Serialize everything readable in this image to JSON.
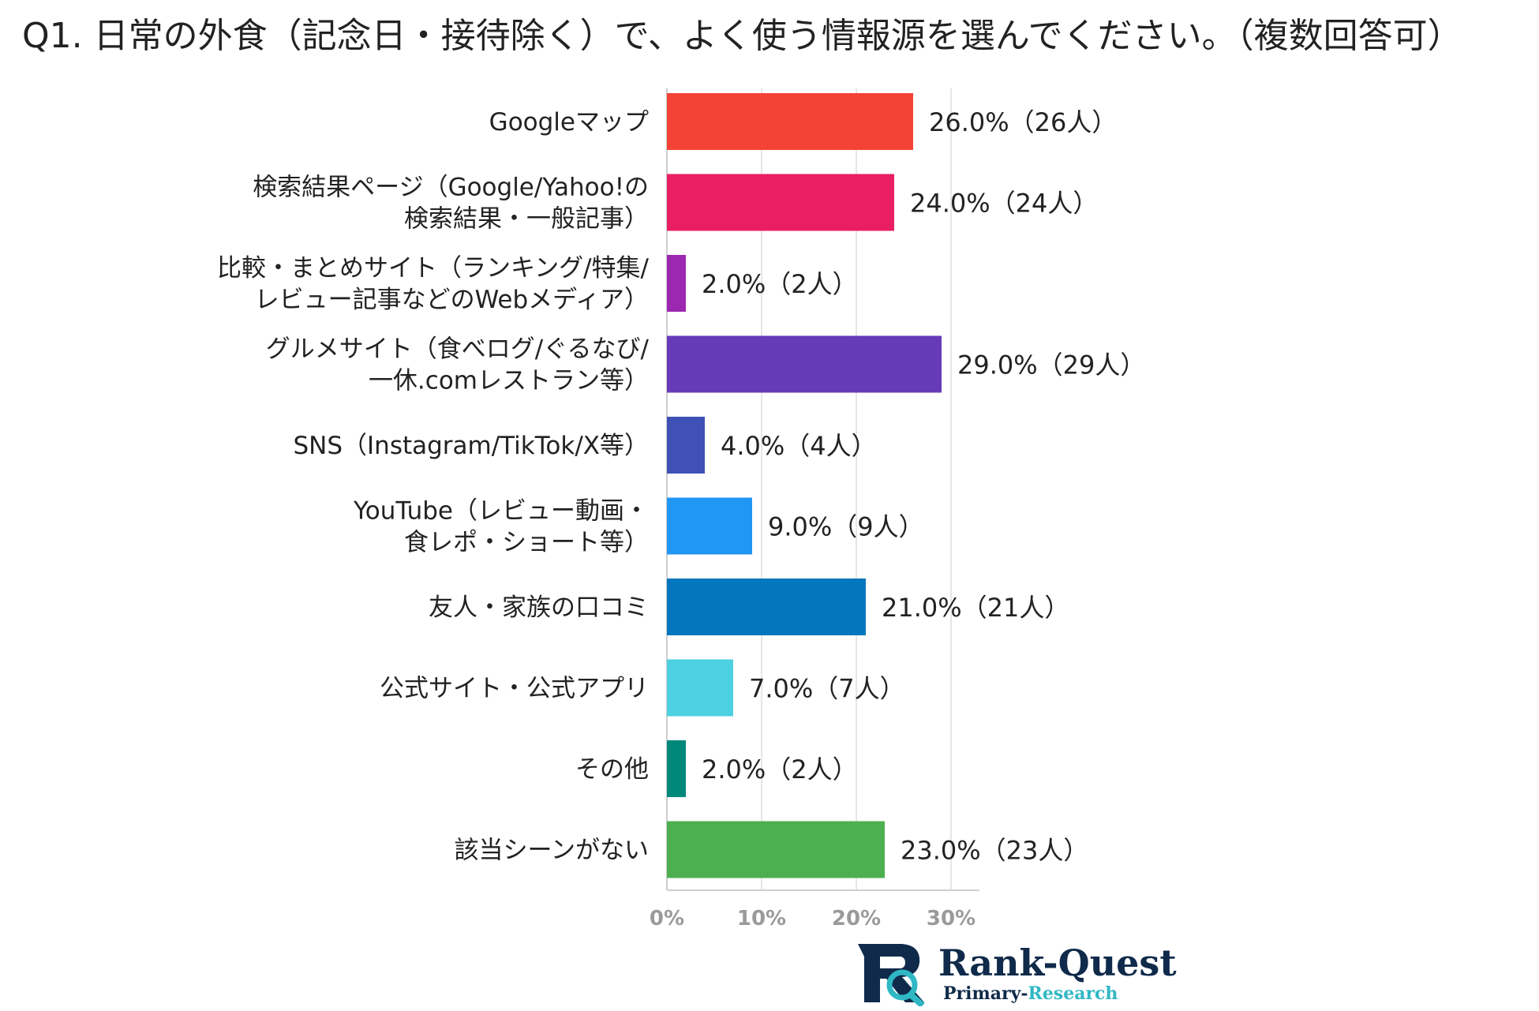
{
  "title": "Q1. 日常の外食（記念日・接待除く）で、よく使う情報源を選んでください。（複数回答可）",
  "chart_data": {
    "type": "bar",
    "orientation": "horizontal",
    "categories": [
      [
        "Googleマップ"
      ],
      [
        "検索結果ページ（Google/Yahoo!の",
        "検索結果・一般記事）"
      ],
      [
        "比較・まとめサイト（ランキング/特集/",
        "レビュー記事などのWebメディア）"
      ],
      [
        "グルメサイト（食べログ/ぐるなび/",
        "一休.comレストラン等）"
      ],
      [
        "SNS（Instagram/TikTok/X等）"
      ],
      [
        "YouTube（レビュー動画・",
        "食レポ・ショート等）"
      ],
      [
        "友人・家族の口コミ"
      ],
      [
        "公式サイト・公式アプリ"
      ],
      [
        "その他"
      ],
      [
        "該当シーンがない"
      ]
    ],
    "values": [
      26.0,
      24.0,
      2.0,
      29.0,
      4.0,
      9.0,
      21.0,
      7.0,
      2.0,
      23.0
    ],
    "value_labels": [
      "26.0%（26人）",
      "24.0%（24人）",
      "2.0%（2人）",
      "29.0%（29人）",
      "4.0%（4人）",
      "9.0%（9人）",
      "21.0%（21人）",
      "7.0%（7人）",
      "2.0%（2人）",
      "23.0%（23人）"
    ],
    "colors": [
      "#f44336",
      "#e91e63",
      "#9c27b0",
      "#673ab7",
      "#3f51b5",
      "#2196f3",
      "#0277bd",
      "#4dd0e1",
      "#00897b",
      "#4caf50"
    ],
    "xticks": [
      "0%",
      "10%",
      "20%",
      "30%"
    ],
    "xlim": [
      0,
      33
    ],
    "grid": true
  },
  "logo": {
    "name": "Rank-Quest",
    "sub_prefix": "Primary-",
    "sub_accent": "Research"
  }
}
